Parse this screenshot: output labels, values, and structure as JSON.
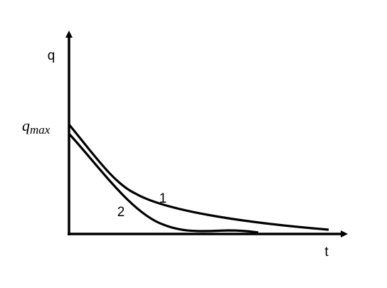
{
  "axes": {
    "y_label": "q",
    "x_label": "t"
  },
  "q_max": {
    "base": "q",
    "subscript": "max"
  },
  "curves": [
    {
      "label": "1"
    },
    {
      "label": "2"
    }
  ]
}
